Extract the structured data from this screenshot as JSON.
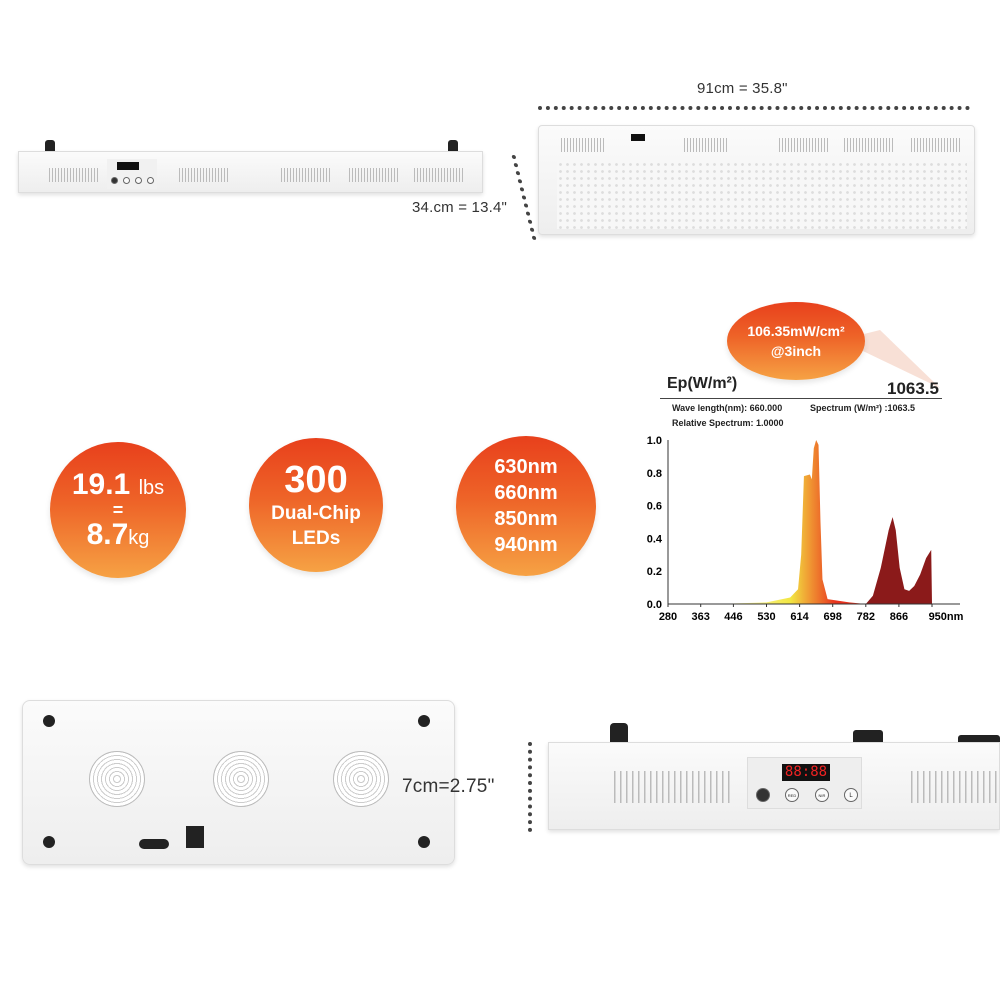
{
  "dimensions": {
    "width_label": "91cm = 35.8\"",
    "depth_label": "34.cm = 13.4\"",
    "height_label": "7cm=2.75\""
  },
  "display": {
    "readout": "88:88",
    "buttons": [
      "RED",
      "NIR",
      "L"
    ]
  },
  "badges": [
    {
      "line1": "19.1",
      "line1_unit": "lbs",
      "line2": "=",
      "line3": "8.7",
      "line3_unit": "kg"
    },
    {
      "line1": "300",
      "line2": "Dual-Chip",
      "line3": "LEDs"
    },
    {
      "lines": [
        "630nm",
        "660nm",
        "850nm",
        "940nm"
      ]
    }
  ],
  "callout": {
    "line1": "106.35mW/cm²",
    "line2": "@3inch"
  },
  "colors": {
    "badge_top": "#e8401c",
    "badge_bottom": "#f6a244",
    "nir": "#8b1a1a",
    "red": "#e8321e",
    "yellow": "#f2e642"
  },
  "chart_data": {
    "type": "area",
    "header": {
      "label": "Ep(W/m²)",
      "value": "1063.5"
    },
    "info": {
      "wavelength": "Wave length(nm): 660.000",
      "spectrum": "Spectrum (W/m²) :1063.5",
      "relative": "Relative Spectrum: 1.0000"
    },
    "xlim": [
      280,
      950
    ],
    "ylim": [
      0,
      1.0
    ],
    "x_ticks": [
      "280",
      "363",
      "446",
      "530",
      "614",
      "698",
      "782",
      "866",
      "950nm"
    ],
    "y_ticks": [
      "0.0",
      "0.2",
      "0.4",
      "0.6",
      "0.8",
      "1.0"
    ],
    "grid": false,
    "series": [
      {
        "x": [
          400,
          530,
          590,
          610,
          618,
          625,
          640,
          645,
          650,
          656,
          662,
          667,
          672,
          685,
          740,
          782
        ],
        "y": [
          0,
          0.01,
          0.04,
          0.09,
          0.3,
          0.78,
          0.79,
          0.76,
          0.95,
          1.0,
          0.97,
          0.5,
          0.15,
          0.03,
          0.01,
          0
        ]
      },
      {
        "x": [
          782,
          800,
          820,
          840,
          850,
          858,
          868,
          880,
          892,
          905,
          920,
          935,
          948,
          950
        ],
        "y": [
          0,
          0.05,
          0.22,
          0.45,
          0.53,
          0.45,
          0.22,
          0.09,
          0.08,
          0.11,
          0.18,
          0.28,
          0.33,
          0
        ]
      }
    ]
  }
}
